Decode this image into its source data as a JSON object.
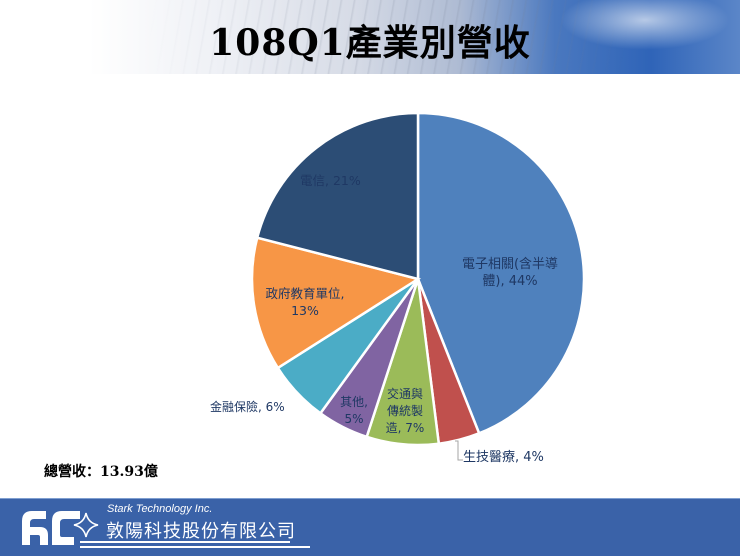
{
  "header": {
    "title": "108Q1產業別營收"
  },
  "chart_data": {
    "type": "pie",
    "title": "108Q1產業別營收",
    "start_angle": "12 o'clock",
    "direction": "clockwise",
    "categories": [
      "電子相關(含半導體)",
      "生技醫療",
      "交通與傳統製造",
      "其他",
      "金融保險",
      "政府教育單位",
      "電信"
    ],
    "values": [
      44,
      4,
      7,
      5,
      6,
      13,
      21
    ],
    "unit": "%",
    "colors": [
      "#4f81bd",
      "#c0504d",
      "#9bbb59",
      "#8064a2",
      "#4bacc6",
      "#f79646",
      "#2c4d75"
    ],
    "labels": [
      {
        "line1": "電子相關(含半導",
        "line2": "體), 44%"
      },
      {
        "line1": "生技醫療, 4%"
      },
      {
        "line1": "交通與",
        "line2": "傳統製",
        "line3": "造, 7%"
      },
      {
        "line1": "其他,",
        "line2": "5%"
      },
      {
        "line1": "金融保險, 6%"
      },
      {
        "line1": "政府教育單位,",
        "line2": "13%"
      },
      {
        "line1": "電信, 21%"
      }
    ],
    "legend": "none (data labels on slices)"
  },
  "summary": {
    "total_revenue": "總營收：13.93億"
  },
  "footer": {
    "company_en": "Stark Technology Inc.",
    "company_zh": "敦陽科技股份有限公司",
    "background_color": "#3a62a8"
  }
}
